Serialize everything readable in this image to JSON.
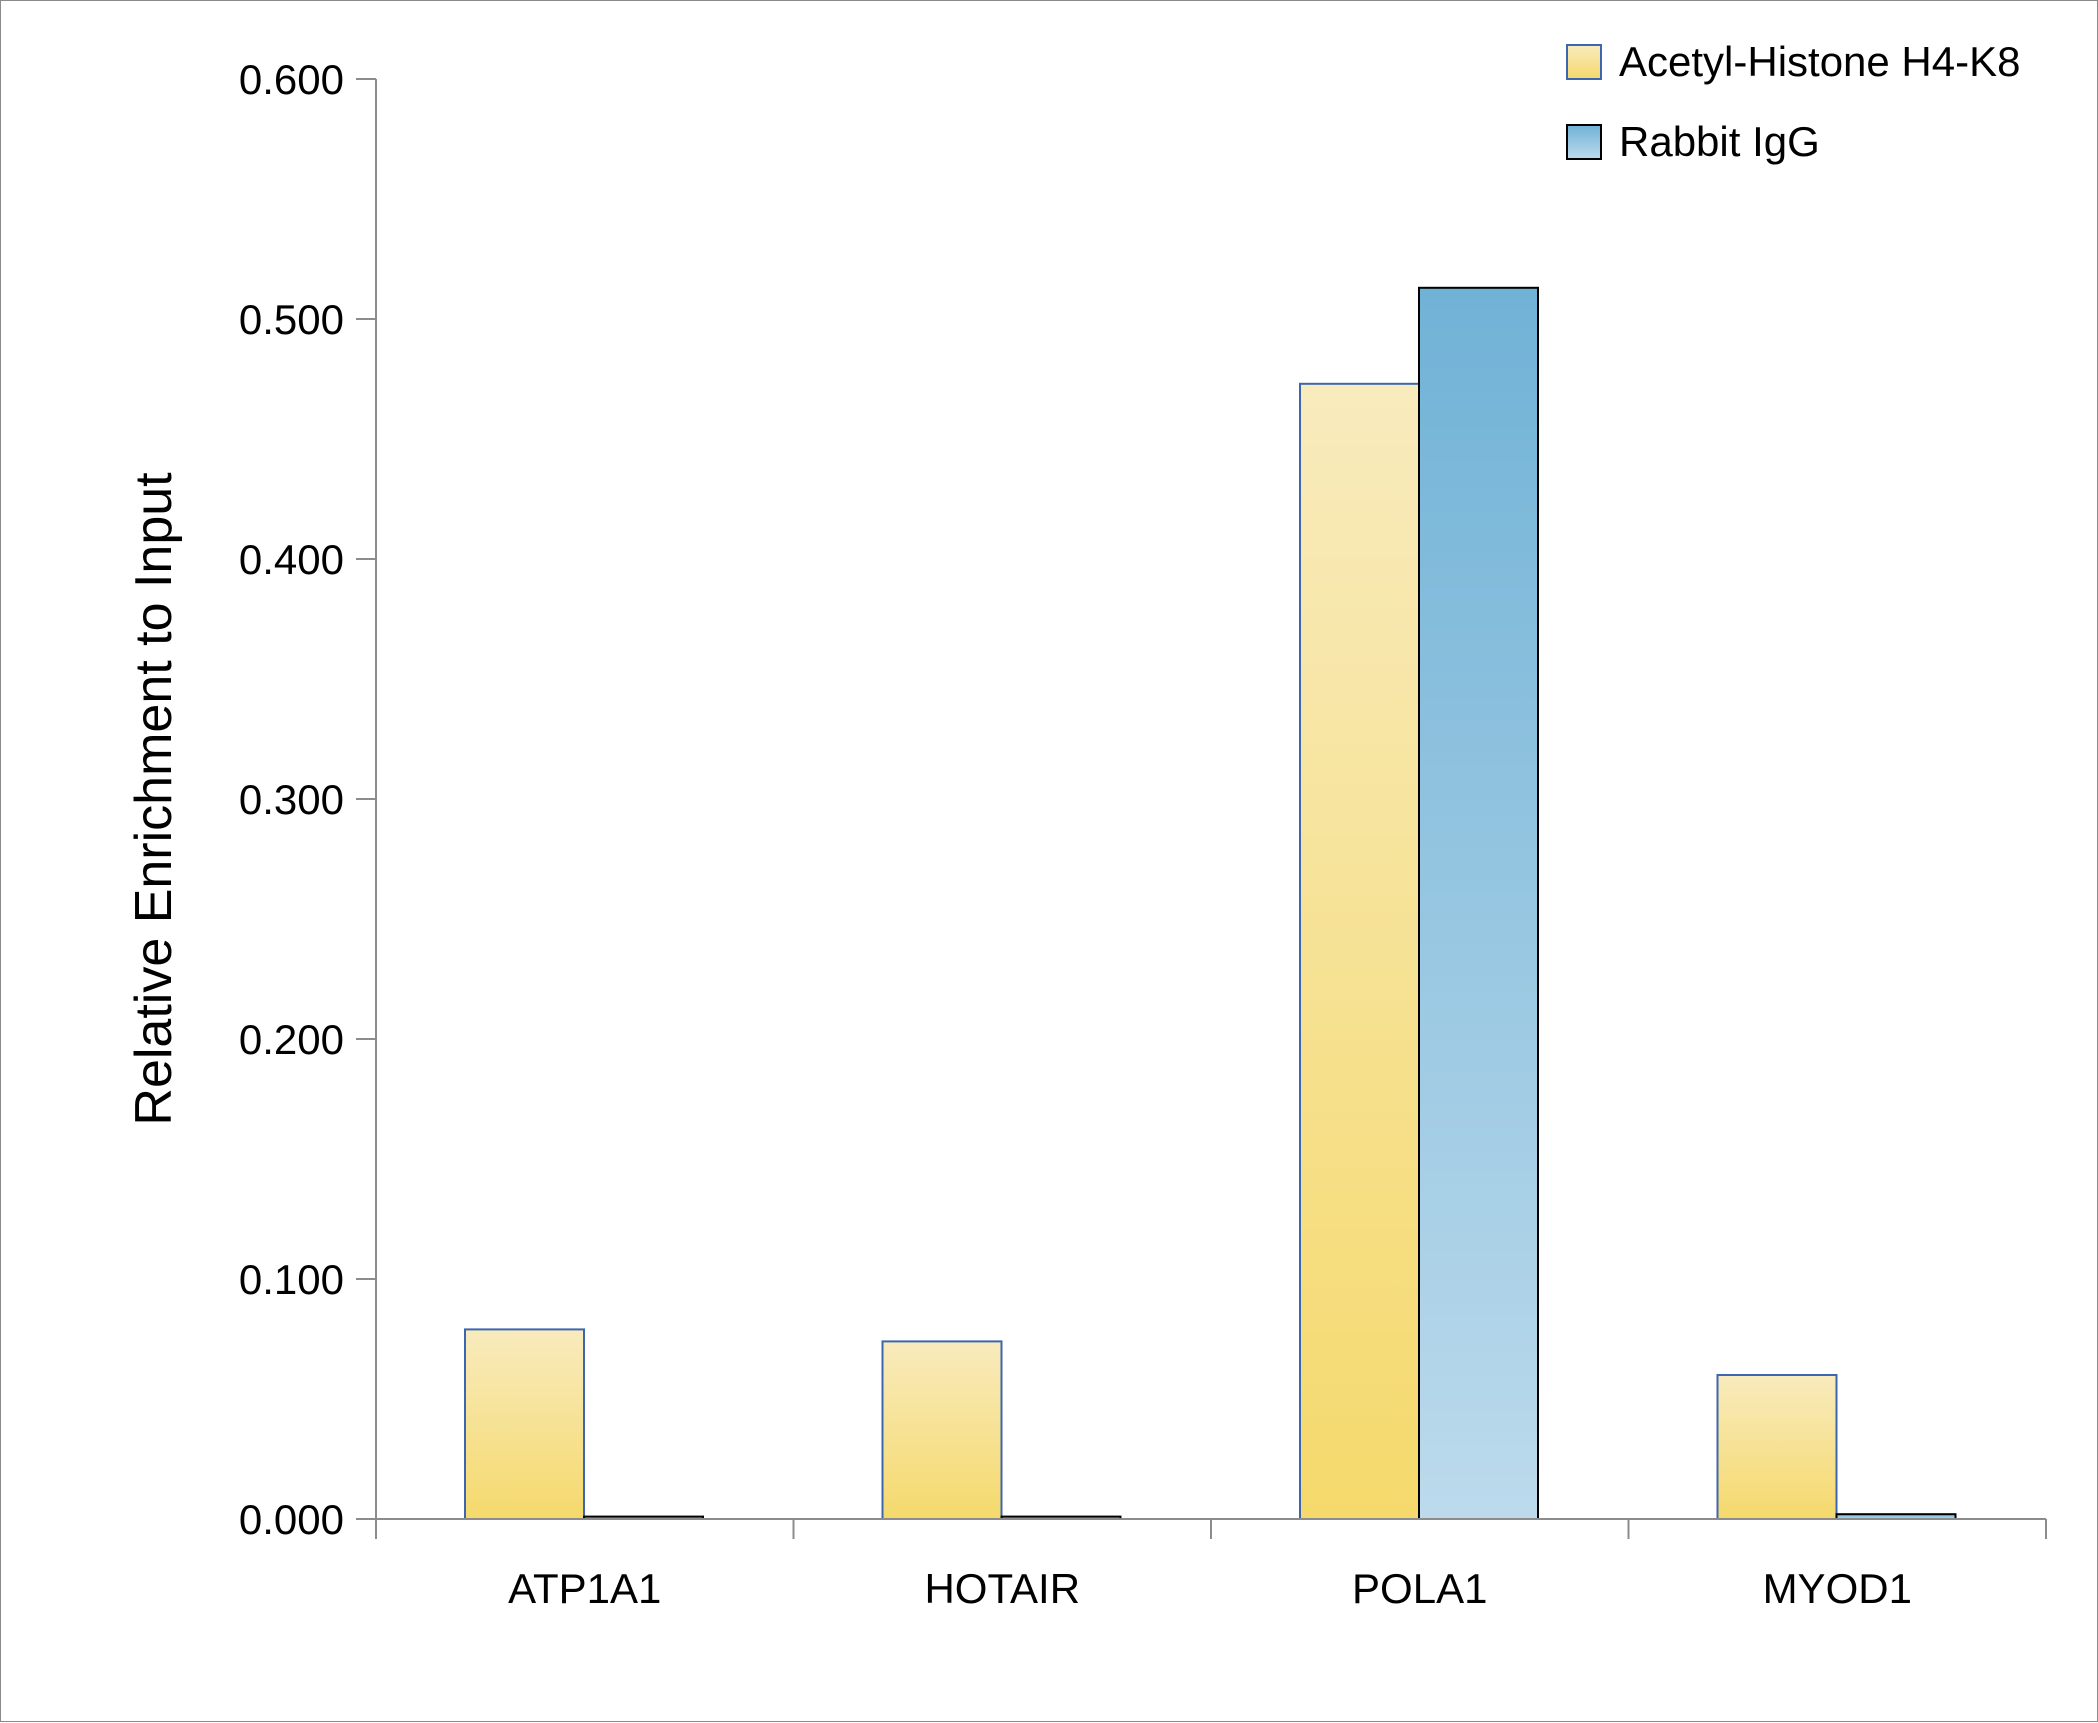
{
  "chart_data": {
    "type": "bar",
    "title": "",
    "xlabel": "",
    "ylabel": "Relative Enrichment to Input",
    "categories": [
      "ATP1A1",
      "HOTAIR",
      "POLA1",
      "MYOD1"
    ],
    "series": [
      {
        "name": "Acetyl-Histone H4-K8",
        "values": [
          0.079,
          0.074,
          0.473,
          0.06
        ],
        "color_top": "#f8ebbd",
        "color_bottom": "#f5d96c",
        "stroke": "#3d66b0"
      },
      {
        "name": "Rabbit IgG",
        "values": [
          0.001,
          0.001,
          0.513,
          0.002
        ],
        "color_top": "#70b2d6",
        "color_bottom": "#bcdaec",
        "stroke": "#000000"
      }
    ],
    "ylim": [
      0,
      0.6
    ],
    "yticks": [
      0.0,
      0.1,
      0.2,
      0.3,
      0.4,
      0.5,
      0.6
    ],
    "ytick_labels": [
      "0.000",
      "0.100",
      "0.200",
      "0.300",
      "0.400",
      "0.500",
      "0.600"
    ],
    "grid": false,
    "legend_position": "top-right",
    "axis_color": "#8c8c8c"
  }
}
